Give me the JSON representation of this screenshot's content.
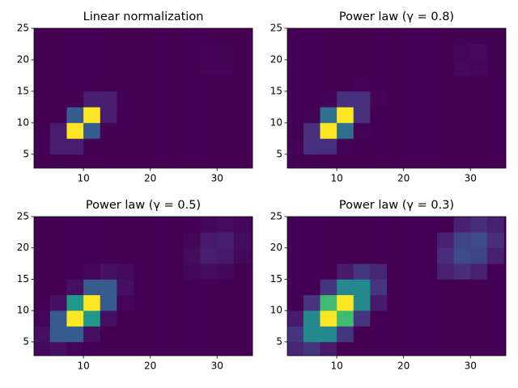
{
  "histogram": {
    "x_edges": [
      2.5,
      5,
      7.5,
      10,
      12.5,
      15,
      17.5,
      20,
      22.5,
      25,
      27.5,
      30,
      32.5,
      35
    ],
    "y_edges": [
      2.5,
      5,
      7.5,
      10,
      12.5,
      15,
      17.5,
      20,
      22.5,
      25
    ],
    "counts": [
      [
        18,
        63,
        5,
        0,
        0,
        0,
        0,
        0,
        0,
        0,
        0,
        0,
        0
      ],
      [
        63,
        2670,
        2670,
        63,
        0,
        0,
        0,
        0,
        0,
        0,
        0,
        0,
        0
      ],
      [
        5,
        2670,
        32500,
        9300,
        63,
        0,
        0,
        0,
        0,
        0,
        0,
        0,
        0
      ],
      [
        0,
        63,
        9300,
        32500,
        2670,
        5,
        0,
        0,
        0,
        0,
        0,
        0,
        0
      ],
      [
        0,
        0,
        63,
        2670,
        2670,
        63,
        0,
        0,
        0,
        0,
        0,
        0,
        0
      ],
      [
        0,
        0,
        0,
        5,
        63,
        18,
        0,
        0,
        0,
        10,
        34,
        10,
        0
      ],
      [
        0,
        0,
        0,
        0,
        0,
        0,
        0,
        0,
        0,
        34,
        238,
        161,
        10
      ],
      [
        0,
        0,
        0,
        0,
        0,
        0,
        0,
        0,
        0,
        10,
        161,
        238,
        34
      ],
      [
        0,
        0,
        0,
        0,
        0,
        0,
        0,
        0,
        0,
        0,
        10,
        34,
        10
      ]
    ]
  },
  "chart_data": [
    {
      "type": "hist2d",
      "title": "Linear normalization",
      "norm": "linear",
      "colormap": "viridis",
      "xlim": [
        2.6,
        35.3
      ],
      "ylim": [
        2.8,
        25
      ],
      "xticks": [
        10,
        20,
        30
      ],
      "yticks": [
        5,
        10,
        15,
        20,
        25
      ]
    },
    {
      "type": "hist2d",
      "title": "Power law (γ = 0.8)",
      "norm": "power",
      "gamma": 0.8,
      "colormap": "viridis",
      "xlim": [
        2.6,
        35.3
      ],
      "ylim": [
        2.8,
        25
      ],
      "xticks": [
        10,
        20,
        30
      ],
      "yticks": [
        5,
        10,
        15,
        20,
        25
      ]
    },
    {
      "type": "hist2d",
      "title": "Power law (γ = 0.5)",
      "norm": "power",
      "gamma": 0.5,
      "colormap": "viridis",
      "xlim": [
        2.6,
        35.3
      ],
      "ylim": [
        2.8,
        25
      ],
      "xticks": [
        10,
        20,
        30
      ],
      "yticks": [
        5,
        10,
        15,
        20,
        25
      ]
    },
    {
      "type": "hist2d",
      "title": "Power law (γ = 0.3)",
      "norm": "power",
      "gamma": 0.3,
      "colormap": "viridis",
      "xlim": [
        2.6,
        35.3
      ],
      "ylim": [
        2.8,
        25
      ],
      "xticks": [
        10,
        20,
        30
      ],
      "yticks": [
        5,
        10,
        15,
        20,
        25
      ]
    }
  ]
}
